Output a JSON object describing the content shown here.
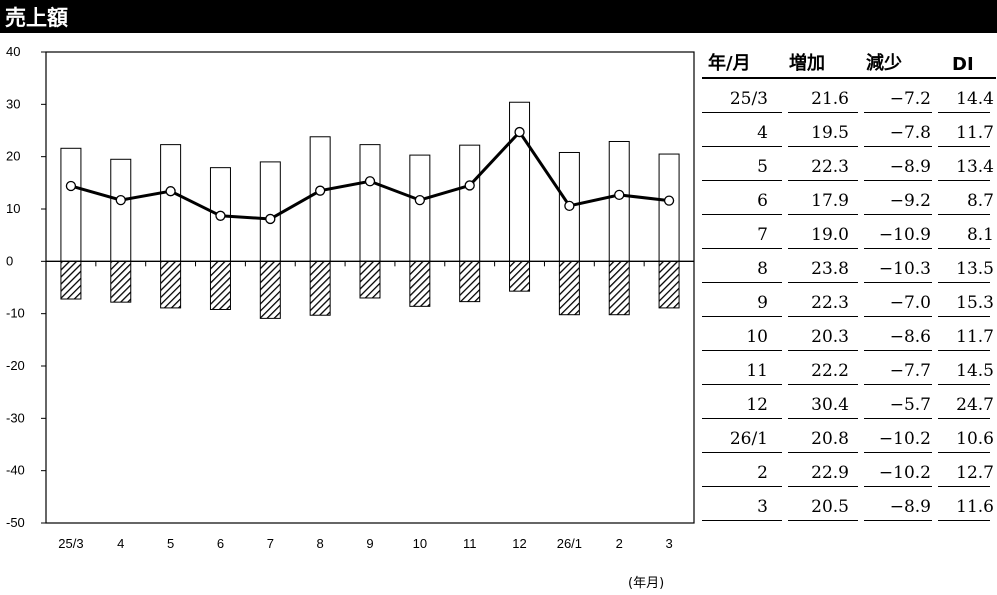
{
  "title": "売上額",
  "x_unit_label": "(年月)",
  "table": {
    "headers": [
      "年/月",
      "増加",
      "減少",
      "DI"
    ],
    "rows": [
      [
        "25/3",
        "21.6",
        "−7.2",
        "14.4"
      ],
      [
        "4",
        "19.5",
        "−7.8",
        "11.7"
      ],
      [
        "5",
        "22.3",
        "−8.9",
        "13.4"
      ],
      [
        "6",
        "17.9",
        "−9.2",
        "8.7"
      ],
      [
        "7",
        "19.0",
        "−10.9",
        "8.1"
      ],
      [
        "8",
        "23.8",
        "−10.3",
        "13.5"
      ],
      [
        "9",
        "22.3",
        "−7.0",
        "15.3"
      ],
      [
        "10",
        "20.3",
        "−8.6",
        "11.7"
      ],
      [
        "11",
        "22.2",
        "−7.7",
        "14.5"
      ],
      [
        "12",
        "30.4",
        "−5.7",
        "24.7"
      ],
      [
        "26/1",
        "20.8",
        "−10.2",
        "10.6"
      ],
      [
        "2",
        "22.9",
        "−10.2",
        "12.7"
      ],
      [
        "3",
        "20.5",
        "−8.9",
        "11.6"
      ]
    ]
  },
  "chart_data": {
    "type": "bar",
    "categories": [
      "25/3",
      "4",
      "5",
      "6",
      "7",
      "8",
      "9",
      "10",
      "11",
      "12",
      "26/1",
      "2",
      "3"
    ],
    "series": [
      {
        "values": [
          21.6,
          19.5,
          22.3,
          17.9,
          19.0,
          23.8,
          22.3,
          20.3,
          22.2,
          30.4,
          20.8,
          22.9,
          20.5
        ],
        "kind": "bar",
        "fill": "#ffffff"
      },
      {
        "values": [
          -7.2,
          -7.8,
          -8.9,
          -9.2,
          -10.9,
          -10.3,
          -7.0,
          -8.6,
          -7.7,
          -5.7,
          -10.2,
          -10.2,
          -8.9
        ],
        "kind": "bar",
        "fill": "hatched"
      },
      {
        "values": [
          14.4,
          11.7,
          13.4,
          8.7,
          8.1,
          13.5,
          15.3,
          11.7,
          14.5,
          24.7,
          10.6,
          12.7,
          11.6
        ],
        "kind": "line",
        "marker": "open-circle"
      }
    ],
    "ylim": [
      -50,
      40
    ],
    "yticks": [
      40,
      30,
      20,
      10,
      0,
      -10,
      -20,
      -30,
      -40,
      -50
    ],
    "grid": false,
    "legend": "none"
  }
}
